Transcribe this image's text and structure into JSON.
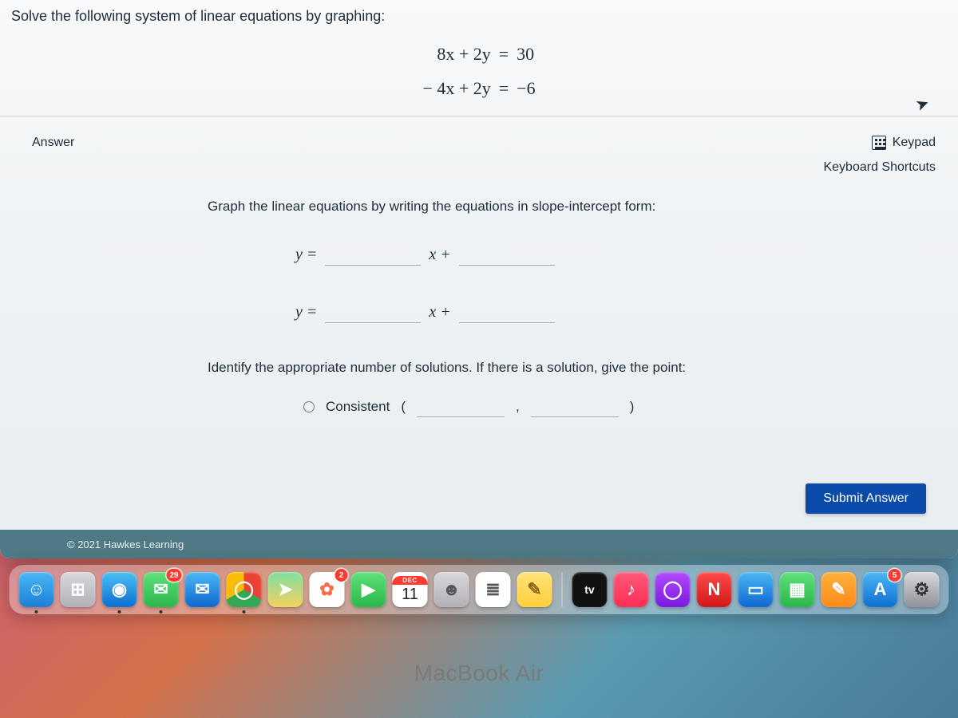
{
  "question": {
    "prompt": "Solve the following system of linear equations by graphing:",
    "eq1_left": "8x + 2y",
    "eq1_eq": "=",
    "eq1_right": "30",
    "eq2_left": "− 4x + 2y",
    "eq2_eq": "=",
    "eq2_right": "−6"
  },
  "answer": {
    "label": "Answer",
    "keypad": "Keypad",
    "shortcuts": "Keyboard Shortcuts",
    "instruction": "Graph the linear equations by writing the equations in slope-intercept form:",
    "y_eq": "y =",
    "x_plus": "x +",
    "identify": "Identify the appropriate number of solutions. If there is a solution, give the point:",
    "consistent": "Consistent",
    "lparen": "(",
    "comma": ",",
    "rparen": ")",
    "submit": "Submit Answer"
  },
  "footer": {
    "copyright": "© 2021 Hawkes Learning"
  },
  "hardware": {
    "label": "MacBook Air"
  },
  "dock": {
    "calendar": {
      "month": "DEC",
      "day": "11"
    },
    "badges": {
      "messages": "29",
      "photos": "2",
      "appstore": "5"
    },
    "apps": [
      {
        "name": "finder",
        "bg": "linear-gradient(#4ab7f5,#1e7fd6)",
        "glyph": "☺",
        "running": true
      },
      {
        "name": "launchpad",
        "bg": "linear-gradient(#d8d8dc,#b0b0b6)",
        "glyph": "⊞"
      },
      {
        "name": "safari",
        "bg": "linear-gradient(#4ac0f5,#0e6fd0)",
        "glyph": "◉",
        "running": true
      },
      {
        "name": "messages",
        "bg": "linear-gradient(#5ee07a,#2bb74a)",
        "glyph": "✉",
        "badge_key": "messages",
        "running": true
      },
      {
        "name": "mail",
        "bg": "linear-gradient(#4ab7f5,#1068d0)",
        "glyph": "✉"
      },
      {
        "name": "chrome",
        "bg": "conic-gradient(#ea4335 0 120deg,#34a853 120deg 240deg,#fbbc05 240deg 360deg)",
        "glyph": "◯",
        "running": true
      },
      {
        "name": "maps",
        "bg": "linear-gradient(#7ee0a0,#f5d060)",
        "glyph": "➤"
      },
      {
        "name": "photos",
        "bg": "#ffffff",
        "glyph": "✿",
        "color": "#ff6a4a",
        "badge_key": "photos"
      },
      {
        "name": "facetime",
        "bg": "linear-gradient(#5ee07a,#2bb74a)",
        "glyph": "▶"
      },
      {
        "name": "calendar",
        "type": "calendar"
      },
      {
        "name": "contacts",
        "bg": "linear-gradient(#d8d8dc,#b0b0b6)",
        "glyph": "☻",
        "color": "#555"
      },
      {
        "name": "reminders",
        "bg": "#ffffff",
        "glyph": "≣",
        "color": "#555"
      },
      {
        "name": "notes",
        "bg": "linear-gradient(#ffe27a,#ffcf3a)",
        "glyph": "✎",
        "color": "#8a6a1a"
      },
      {
        "type": "sep"
      },
      {
        "name": "tv",
        "bg": "#111",
        "glyph": "tv",
        "fontsize": "14px"
      },
      {
        "name": "music",
        "bg": "linear-gradient(#ff5a7a,#ff2d55)",
        "glyph": "♪"
      },
      {
        "name": "podcasts",
        "bg": "linear-gradient(#b44aff,#7a1adf)",
        "glyph": "◯"
      },
      {
        "name": "news",
        "bg": "linear-gradient(#ff4a4a,#d01a1a)",
        "glyph": "N"
      },
      {
        "name": "keynote",
        "bg": "linear-gradient(#4ab7f5,#1068d0)",
        "glyph": "▭"
      },
      {
        "name": "numbers",
        "bg": "linear-gradient(#5ee07a,#2bb74a)",
        "glyph": "▦"
      },
      {
        "name": "pages",
        "bg": "linear-gradient(#ffb03a,#ff8a1a)",
        "glyph": "✎"
      },
      {
        "name": "appstore",
        "bg": "linear-gradient(#4ab7f5,#0e6fd0)",
        "glyph": "A",
        "badge_key": "appstore"
      },
      {
        "name": "settings",
        "bg": "linear-gradient(#d8d8dc,#909096)",
        "glyph": "⚙",
        "color": "#333"
      }
    ]
  },
  "colors": {
    "submit_bg": "#0a4aa8",
    "footer_bg": "#4f7a85",
    "text": "#1d2d3a"
  }
}
